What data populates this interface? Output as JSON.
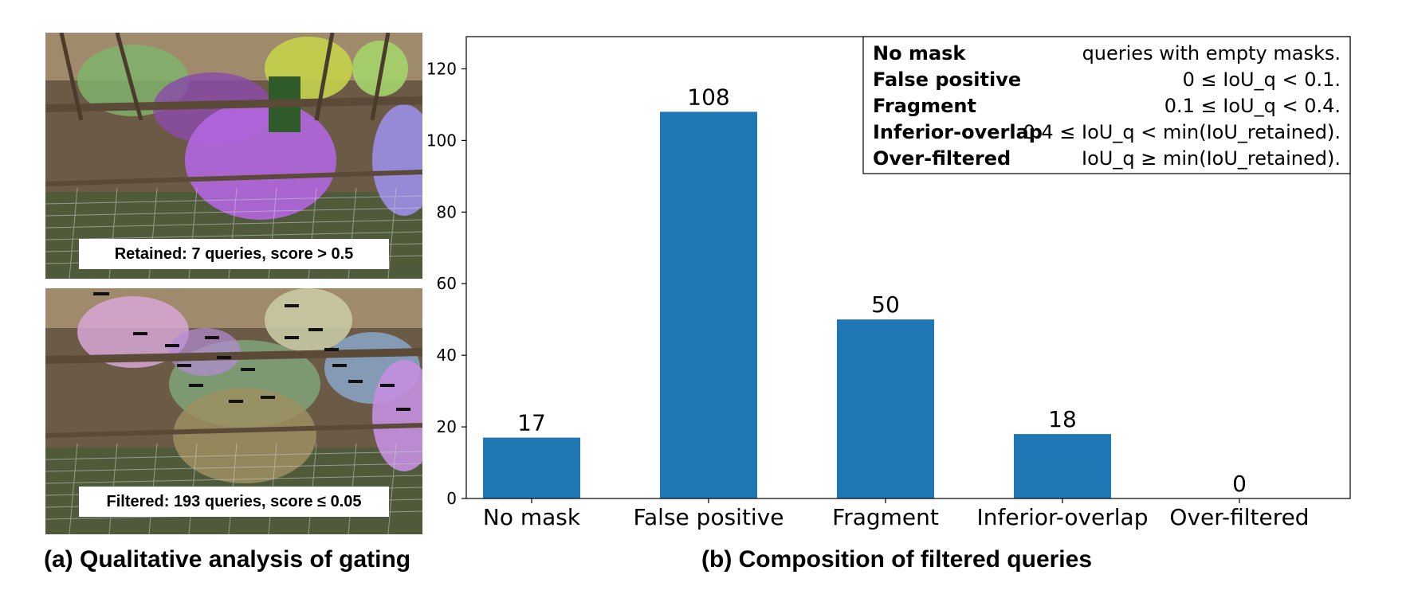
{
  "left_panel": {
    "top_image": {
      "caption": "Retained: 7 queries, score > 0.5",
      "mask_colors": [
        "#7fb36b",
        "#8b4ca8",
        "#b266e0",
        "#c6d14d",
        "#9b8ee6",
        "#a5d36a"
      ]
    },
    "bottom_image": {
      "caption": "Filtered: 193 queries, score ≤ 0.05",
      "mask_colors": [
        "#d7a6d6",
        "#7fa57a",
        "#9c8f60",
        "#b38ad6",
        "#c9c9a3",
        "#8aa7c9",
        "#c48fe0"
      ]
    },
    "caption": "(a) Qualitative analysis of gating"
  },
  "right_panel": {
    "caption": "(b) Composition of filtered queries"
  },
  "chart_data": {
    "type": "bar",
    "categories": [
      "No mask",
      "False positive",
      "Fragment",
      "Inferior-overlap",
      "Over-filtered"
    ],
    "values": [
      17,
      108,
      50,
      18,
      0
    ],
    "bar_color": "#1f77b4",
    "ylim": [
      0,
      129
    ],
    "yticks": [
      0,
      20,
      40,
      60,
      80,
      100,
      120
    ],
    "ytick_labels": [
      "0",
      "20",
      "40",
      "60",
      "80",
      "100",
      "120"
    ],
    "data_labels": [
      "17",
      "108",
      "50",
      "18",
      "0"
    ],
    "legend_position": "top-right",
    "legend": [
      {
        "term": "No mask",
        "definition": "queries with empty masks."
      },
      {
        "term": "False positive",
        "definition": "0 ≤ IoU_q < 0.1."
      },
      {
        "term": "Fragment",
        "definition": "0.1 ≤ IoU_q < 0.4."
      },
      {
        "term": "Inferior-overlap",
        "definition": "0.4 ≤ IoU_q < min(IoU_retained)."
      },
      {
        "term": "Over-filtered",
        "definition": "IoU_q ≥ min(IoU_retained)."
      }
    ]
  }
}
